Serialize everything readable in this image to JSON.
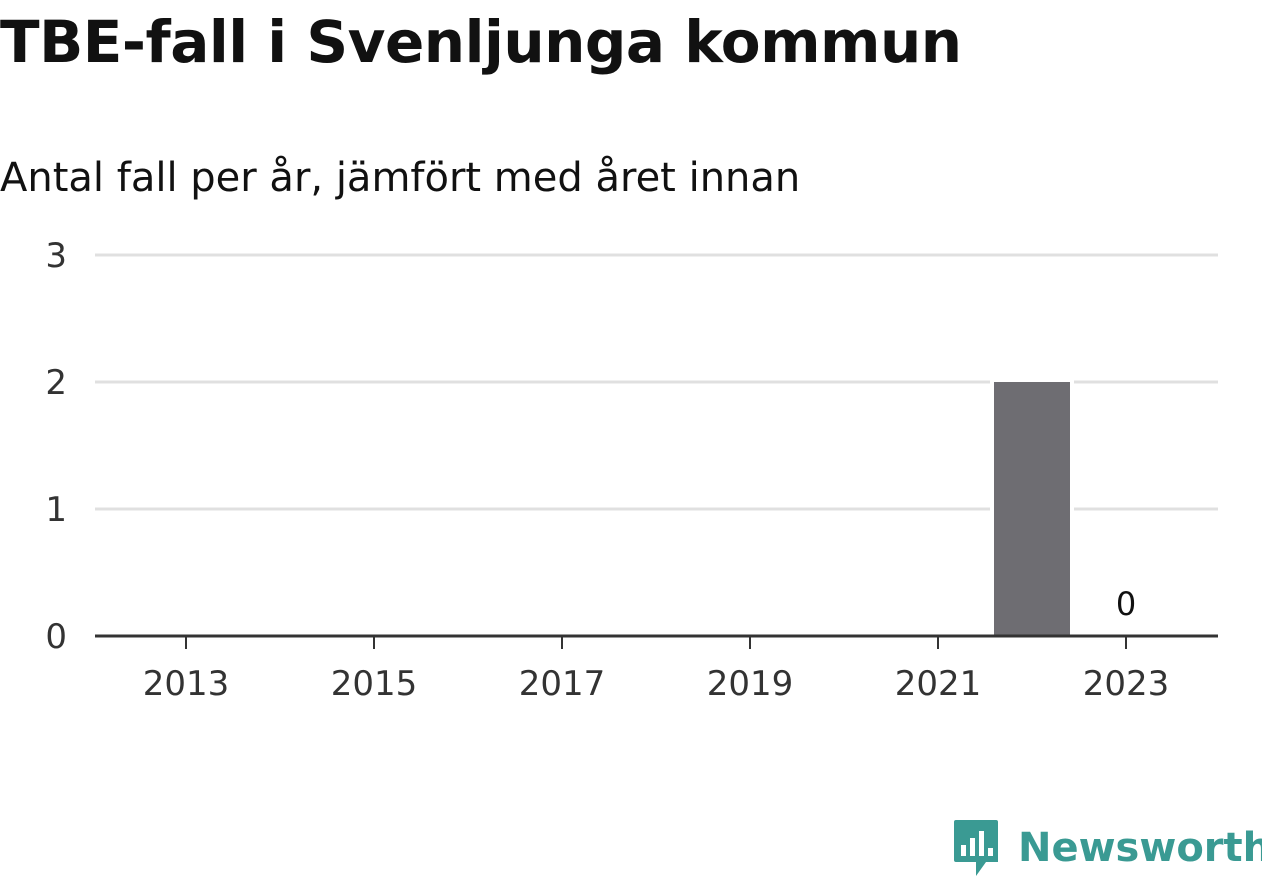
{
  "title": "TBE-fall i Svenljunga kommun",
  "subtitle": "Antal fall per år, jämfört med året innan",
  "brand": {
    "name": "Newsworthy",
    "icon": "newsworthy-logo-icon",
    "color": "#3a9a93"
  },
  "colors": {
    "bar": "#6e6d72",
    "grid": "#e0e0e0",
    "axis": "#333333",
    "tick_text": "#333333"
  },
  "chart_data": {
    "type": "bar",
    "x": [
      2013,
      2014,
      2015,
      2016,
      2017,
      2018,
      2019,
      2020,
      2021,
      2022,
      2023
    ],
    "values": [
      0,
      0,
      0,
      0,
      0,
      0,
      0,
      0,
      0,
      2,
      0
    ],
    "x_tick_labels": [
      "2013",
      "2015",
      "2017",
      "2019",
      "2021",
      "2023"
    ],
    "y_tick_labels": [
      "0",
      "1",
      "2",
      "3"
    ],
    "ylim": [
      0,
      3
    ],
    "data_labels": [
      {
        "x": 2023,
        "text": "0"
      }
    ],
    "grid": true,
    "legend": "none"
  }
}
